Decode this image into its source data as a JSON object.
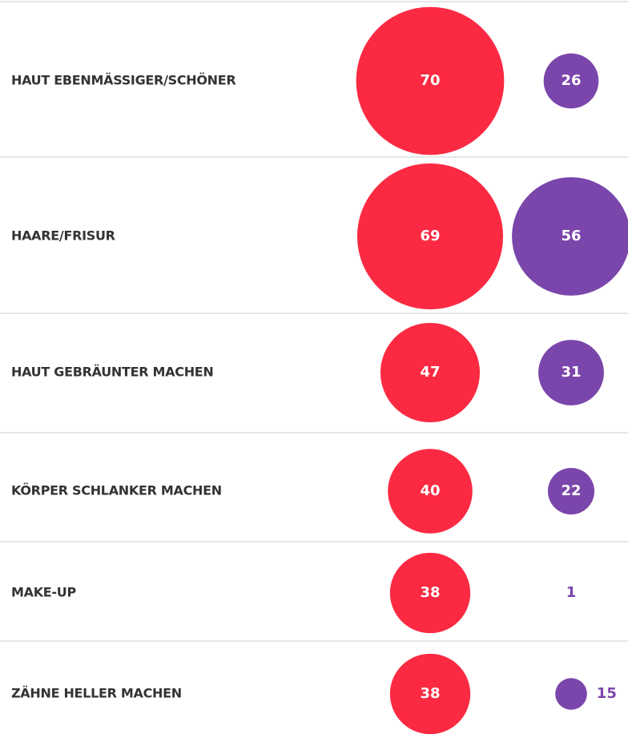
{
  "chart_data": {
    "type": "bubble",
    "categories": [
      "HAUT EBENMÄSSIGER/SCHÖNER",
      "HAARE/FRISUR",
      "HAUT GEBRÄUNTER MACHEN",
      "KÖRPER SCHLANKER MACHEN",
      "MAKE-UP",
      "ZÄHNE HELLER MACHEN"
    ],
    "series": [
      {
        "color": "#fb2a42",
        "values": [
          70,
          69,
          47,
          40,
          38,
          38
        ]
      },
      {
        "color": "#7b46ab",
        "values": [
          26,
          56,
          31,
          22,
          1,
          15
        ]
      }
    ]
  }
}
